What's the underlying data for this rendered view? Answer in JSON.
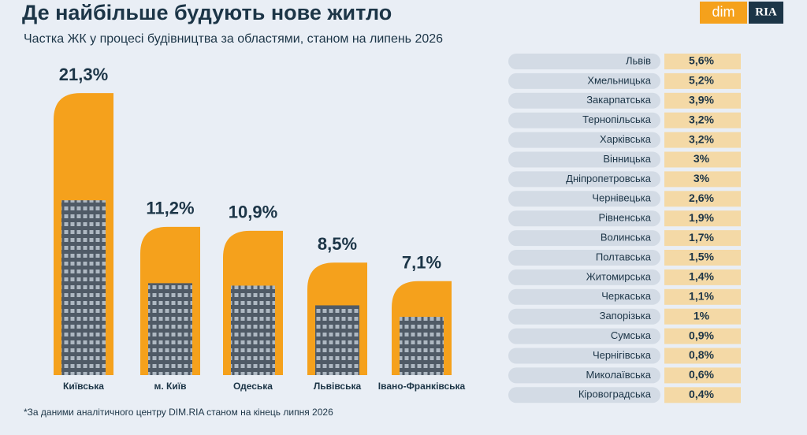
{
  "header": {
    "title": "Де найбільше будують нове житло",
    "subtitle": "Частка ЖК у процесі будівництва за областями, станом на липень 2026",
    "logo_left": "dim",
    "logo_right": "RIA"
  },
  "chart_data": {
    "type": "bar",
    "categories": [
      "Київська",
      "м. Київ",
      "Одеська",
      "Львівська",
      "Івано-Франківська"
    ],
    "values": [
      21.3,
      11.2,
      10.9,
      8.5,
      7.1
    ],
    "value_labels": [
      "21,3%",
      "11,2%",
      "10,9%",
      "8,5%",
      "7,1%"
    ],
    "color": "#f5a11c"
  },
  "table": {
    "rows": [
      [
        "Львів",
        "5,6%"
      ],
      [
        "Хмельницька",
        "5,2%"
      ],
      [
        "Закарпатська",
        "3,9%"
      ],
      [
        "Тернопільська",
        "3,2%"
      ],
      [
        "Харківська",
        "3,2%"
      ],
      [
        "Вінницька",
        "3%"
      ],
      [
        "Дніпропетровська",
        "3%"
      ],
      [
        "Чернівецька",
        "2,6%"
      ],
      [
        "Рівненська",
        "1,9%"
      ],
      [
        "Волинська",
        "1,7%"
      ],
      [
        "Полтавська",
        "1,5%"
      ],
      [
        "Житомирська",
        "1,4%"
      ],
      [
        "Черкаська",
        "1,1%"
      ],
      [
        "Запорізька",
        "1%"
      ],
      [
        "Сумська",
        "0,9%"
      ],
      [
        "Чернігівська",
        "0,8%"
      ],
      [
        "Миколаївська",
        "0,6%"
      ],
      [
        "Кіровоградська",
        "0,4%"
      ]
    ]
  },
  "footnote": "*За даними аналітичного центру DIM.RIA станом на кінець липня 2026"
}
